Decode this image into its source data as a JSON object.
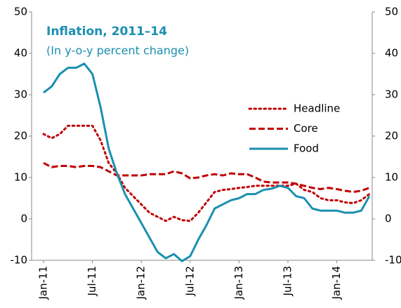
{
  "chart_data": {
    "type": "line",
    "title": "Inflation, 2011–14",
    "subtitle": "(In y-o-y percent change)",
    "categories": [
      "Jan-11",
      null,
      null,
      null,
      null,
      null,
      "Jul-11",
      null,
      null,
      null,
      null,
      null,
      "Jan-12",
      null,
      null,
      null,
      null,
      null,
      "Jul-12",
      null,
      null,
      null,
      null,
      null,
      "Jan-13",
      null,
      null,
      null,
      null,
      null,
      "Jul-13",
      null,
      null,
      null,
      null,
      null,
      "Jan-14",
      null,
      null,
      null,
      null
    ],
    "series": [
      {
        "name": "Headline",
        "color": "#c00000",
        "dash": "dotted",
        "values": [
          20.5,
          19.5,
          20.5,
          22.5,
          22.5,
          22.5,
          22.5,
          19,
          13.5,
          11,
          7.5,
          5.5,
          3.5,
          1.5,
          0.5,
          -0.5,
          0.5,
          -0.3,
          -0.5,
          1.5,
          4,
          6.5,
          7,
          7.2,
          7.5,
          7.7,
          8,
          8,
          8,
          8,
          8,
          8.5,
          7,
          6.5,
          5,
          4.5,
          4.5,
          4,
          3.8,
          4.5,
          6
        ]
      },
      {
        "name": "Core",
        "color": "#c00000",
        "dash": "dashed",
        "values": [
          13.5,
          12.5,
          12.8,
          12.8,
          12.5,
          12.8,
          12.8,
          12.5,
          11.5,
          10.5,
          10.5,
          10.5,
          10.5,
          10.8,
          10.8,
          10.8,
          11.5,
          11,
          9.8,
          10,
          10.5,
          10.8,
          10.5,
          11,
          10.8,
          10.8,
          10,
          9,
          8.8,
          8.8,
          8.8,
          8.5,
          8,
          7.5,
          7.2,
          7.5,
          7.2,
          6.8,
          6.5,
          6.8,
          7.5
        ]
      },
      {
        "name": "Food",
        "color": "#1b8fb0",
        "dash": "solid",
        "values": [
          30.5,
          32,
          35,
          36.5,
          36.5,
          37.5,
          35,
          27,
          17,
          11,
          6,
          2.5,
          -1,
          -4.5,
          -8,
          -9.5,
          -8.5,
          -10.2,
          -9,
          -5,
          -1.5,
          2.5,
          3.5,
          4.5,
          5,
          6,
          6,
          7,
          7.3,
          8,
          7.5,
          5.5,
          5,
          2.5,
          2,
          2,
          2,
          1.5,
          1.5,
          2,
          5.5
        ]
      }
    ],
    "ylim": [
      -10,
      50
    ],
    "yticks": [
      -10,
      0,
      10,
      20,
      30,
      40,
      50
    ],
    "y2lim": [
      -10,
      50
    ],
    "y2ticks": [
      -10,
      0,
      10,
      20,
      30,
      40,
      50
    ],
    "title_color": "#1b8fb0"
  }
}
